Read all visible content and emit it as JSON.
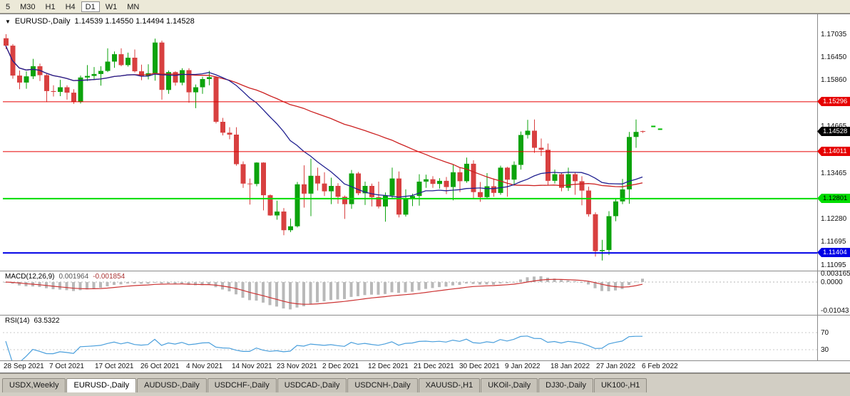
{
  "toolbar": {
    "periods": [
      "5",
      "M30",
      "H1",
      "H4",
      "D1",
      "W1",
      "MN"
    ],
    "active_period": "D1"
  },
  "chart": {
    "symbol_period": "EURUSD-,Daily",
    "ohlc": "1.14539 1.14550 1.14494 1.14528",
    "price_axis_labels": [
      "1.17035",
      "1.16450",
      "1.15860",
      "1.14665",
      "1.13465",
      "1.12280",
      "1.11695",
      "1.11095"
    ],
    "levels": [
      {
        "price": 1.15296,
        "label": "1.15296",
        "color": "#e60000",
        "text_color": "#ffffff",
        "width": 1
      },
      {
        "price": 1.14011,
        "label": "1.14011",
        "color": "#e60000",
        "text_color": "#ffffff",
        "width": 1
      },
      {
        "price": 1.12801,
        "label": "1.12801",
        "color": "#00dd00",
        "text_color": "#000000",
        "width": 2
      },
      {
        "price": 1.11404,
        "label": "1.11404",
        "color": "#0000e6",
        "text_color": "#ffffff",
        "width": 2
      }
    ],
    "current_price": {
      "label": "1.14528",
      "price": 1.14528,
      "bg": "#000000",
      "text_color": "#ffffff"
    },
    "colors": {
      "up": "#0ca30c",
      "down": "#d84040",
      "ma_fast": "#202090",
      "ma_slow": "#cc2020"
    },
    "date_axis_labels": [
      "28 Sep 2021",
      "7 Oct 2021",
      "17 Oct 2021",
      "26 Oct 2021",
      "4 Nov 2021",
      "14 Nov 2021",
      "23 Nov 2021",
      "2 Dec 2021",
      "12 Dec 2021",
      "21 Dec 2021",
      "30 Dec 2021",
      "9 Jan 2022",
      "18 Jan 2022",
      "27 Jan 2022",
      "6 Feb 2022"
    ]
  },
  "macd": {
    "name": "MACD(12,26,9)",
    "value_main": "0.001964",
    "value_signal": "-0.001854",
    "axis_labels": [
      "0.003165",
      "0.0000",
      "-0.01043"
    ],
    "colors": {
      "hist": "#b9b9b9",
      "signal": "#cc3333"
    }
  },
  "rsi": {
    "name": "RSI(14)",
    "value": "63.5322",
    "axis_labels": [
      "70",
      "30"
    ],
    "color": "#4a9fdc"
  },
  "tabs": {
    "items": [
      "USDX,Weekly",
      "EURUSD-,Daily",
      "AUDUSD-,Daily",
      "USDCHF-,Daily",
      "USDCAD-,Daily",
      "USDCNH-,Daily",
      "XAUUSD-,H1",
      "UKOil-,Daily",
      "DJ30-,Daily",
      "UK100-,H1"
    ],
    "active": "EURUSD-,Daily"
  },
  "chart_data": {
    "type": "candlestick",
    "symbol": "EURUSD-",
    "timeframe": "Daily",
    "start_date": "28 Sep 2021",
    "end_date": "6 Feb 2022",
    "y_range": [
      1.11095,
      1.17035
    ],
    "current_bar": {
      "open": 1.14539,
      "high": 1.1455,
      "low": 1.14494,
      "close": 1.14528
    },
    "overlays": {
      "horizontal_lines": [
        1.15296,
        1.14011,
        1.12801,
        1.11404
      ],
      "ma_fast_period": 20,
      "ma_slow_period": 45
    },
    "indicators": [
      {
        "type": "MACD",
        "params": [
          12,
          26,
          9
        ],
        "current": [
          0.001964,
          -0.001854
        ],
        "axis_range": [
          -0.01043,
          0.003165
        ]
      },
      {
        "type": "RSI",
        "params": [
          14
        ],
        "current": 63.5322,
        "levels": [
          30,
          70
        ]
      }
    ],
    "price_marks": [
      {
        "bar_offset": 95.6,
        "price": 1.1466
      },
      {
        "bar_offset": 96.6,
        "price": 1.1459
      }
    ],
    "candles": [
      [
        1.1693,
        1.17035,
        1.1665,
        1.1674
      ],
      [
        1.1674,
        1.1678,
        1.1589,
        1.1597
      ],
      [
        1.1597,
        1.161,
        1.1562,
        1.1579
      ],
      [
        1.1579,
        1.1608,
        1.1563,
        1.1595
      ],
      [
        1.1595,
        1.164,
        1.1588,
        1.1621
      ],
      [
        1.1621,
        1.1628,
        1.1583,
        1.1598
      ],
      [
        1.1598,
        1.1601,
        1.1529,
        1.1557
      ],
      [
        1.1557,
        1.1572,
        1.1543,
        1.1555
      ],
      [
        1.1555,
        1.1586,
        1.1544,
        1.1567
      ],
      [
        1.1567,
        1.1572,
        1.1535,
        1.1553
      ],
      [
        1.1553,
        1.1562,
        1.1524,
        1.1529
      ],
      [
        1.1529,
        1.1597,
        1.1525,
        1.1592
      ],
      [
        1.1592,
        1.1624,
        1.1583,
        1.1596
      ],
      [
        1.1596,
        1.1619,
        1.1588,
        1.1601
      ],
      [
        1.1601,
        1.1621,
        1.1571,
        1.1609
      ],
      [
        1.1609,
        1.1667,
        1.1606,
        1.1633
      ],
      [
        1.1633,
        1.1659,
        1.1617,
        1.1652
      ],
      [
        1.1652,
        1.1667,
        1.1621,
        1.1624
      ],
      [
        1.1624,
        1.1656,
        1.162,
        1.1643
      ],
      [
        1.1643,
        1.1664,
        1.1605,
        1.1608
      ],
      [
        1.1608,
        1.1625,
        1.1585,
        1.1596
      ],
      [
        1.1596,
        1.1626,
        1.1587,
        1.1603
      ],
      [
        1.1603,
        1.1692,
        1.1584,
        1.1682
      ],
      [
        1.1682,
        1.1687,
        1.1535,
        1.156
      ],
      [
        1.156,
        1.161,
        1.155,
        1.1606
      ],
      [
        1.1606,
        1.1608,
        1.1571,
        1.1579
      ],
      [
        1.1579,
        1.1616,
        1.1572,
        1.1611
      ],
      [
        1.1611,
        1.1616,
        1.1527,
        1.1554
      ],
      [
        1.1554,
        1.1574,
        1.1513,
        1.1567
      ],
      [
        1.1567,
        1.1594,
        1.155,
        1.1588
      ],
      [
        1.1588,
        1.1609,
        1.1572,
        1.1593
      ],
      [
        1.1593,
        1.1595,
        1.1474,
        1.1478
      ],
      [
        1.1478,
        1.1488,
        1.1443,
        1.145
      ],
      [
        1.145,
        1.1464,
        1.1433,
        1.1445
      ],
      [
        1.1445,
        1.1464,
        1.1365,
        1.1369
      ],
      [
        1.1369,
        1.1376,
        1.1308,
        1.1319
      ],
      [
        1.1319,
        1.1332,
        1.1265,
        1.1318
      ],
      [
        1.1318,
        1.1374,
        1.1312,
        1.1373
      ],
      [
        1.1373,
        1.1374,
        1.125,
        1.1289
      ],
      [
        1.1289,
        1.1291,
        1.1236,
        1.1237
      ],
      [
        1.1237,
        1.1275,
        1.1226,
        1.1247
      ],
      [
        1.1247,
        1.1256,
        1.1186,
        1.1199
      ],
      [
        1.1199,
        1.1229,
        1.1194,
        1.1209
      ],
      [
        1.1209,
        1.1323,
        1.1206,
        1.1317
      ],
      [
        1.1317,
        1.1366,
        1.1257,
        1.1293
      ],
      [
        1.1293,
        1.1383,
        1.1235,
        1.1339
      ],
      [
        1.1339,
        1.136,
        1.1301,
        1.1319
      ],
      [
        1.1319,
        1.1348,
        1.1287,
        1.1299
      ],
      [
        1.1299,
        1.1334,
        1.1266,
        1.1313
      ],
      [
        1.1313,
        1.132,
        1.1267,
        1.1285
      ],
      [
        1.1285,
        1.1288,
        1.1228,
        1.1266
      ],
      [
        1.1266,
        1.1354,
        1.1254,
        1.1345
      ],
      [
        1.1345,
        1.1349,
        1.1289,
        1.1294
      ],
      [
        1.1294,
        1.1324,
        1.1264,
        1.1313
      ],
      [
        1.1313,
        1.1319,
        1.126,
        1.1284
      ],
      [
        1.1284,
        1.1324,
        1.1255,
        1.126
      ],
      [
        1.126,
        1.1296,
        1.1221,
        1.1288
      ],
      [
        1.1288,
        1.136,
        1.1281,
        1.1332
      ],
      [
        1.1332,
        1.135,
        1.1232,
        1.1239
      ],
      [
        1.1239,
        1.1304,
        1.1234,
        1.128
      ],
      [
        1.128,
        1.1293,
        1.1261,
        1.1287
      ],
      [
        1.1287,
        1.1343,
        1.1262,
        1.1324
      ],
      [
        1.1324,
        1.1342,
        1.1308,
        1.133
      ],
      [
        1.133,
        1.1338,
        1.1308,
        1.1318
      ],
      [
        1.1318,
        1.1333,
        1.1306,
        1.1326
      ],
      [
        1.1326,
        1.1336,
        1.1292,
        1.131
      ],
      [
        1.131,
        1.1369,
        1.1276,
        1.1348
      ],
      [
        1.1348,
        1.136,
        1.1297,
        1.1325
      ],
      [
        1.1325,
        1.1386,
        1.1321,
        1.137
      ],
      [
        1.137,
        1.1379,
        1.1279,
        1.1297
      ],
      [
        1.1297,
        1.1323,
        1.1272,
        1.1284
      ],
      [
        1.1284,
        1.1346,
        1.128,
        1.1312
      ],
      [
        1.1312,
        1.1332,
        1.1285,
        1.1295
      ],
      [
        1.1295,
        1.1365,
        1.129,
        1.136
      ],
      [
        1.136,
        1.1362,
        1.1285,
        1.1329
      ],
      [
        1.1329,
        1.1376,
        1.1314,
        1.1367
      ],
      [
        1.1367,
        1.1453,
        1.1355,
        1.1444
      ],
      [
        1.1444,
        1.1483,
        1.1435,
        1.1455
      ],
      [
        1.1455,
        1.1484,
        1.1398,
        1.1411
      ],
      [
        1.1411,
        1.1435,
        1.139,
        1.1406
      ],
      [
        1.1406,
        1.1422,
        1.1315,
        1.1326
      ],
      [
        1.1326,
        1.1355,
        1.1319,
        1.1343
      ],
      [
        1.1343,
        1.1347,
        1.1299,
        1.1308
      ],
      [
        1.1308,
        1.136,
        1.13,
        1.1343
      ],
      [
        1.1343,
        1.1348,
        1.129,
        1.1325
      ],
      [
        1.1325,
        1.1338,
        1.1263,
        1.1301
      ],
      [
        1.1301,
        1.1311,
        1.1234,
        1.124
      ],
      [
        1.124,
        1.1245,
        1.1131,
        1.1145
      ],
      [
        1.1145,
        1.1174,
        1.1121,
        1.1148
      ],
      [
        1.1148,
        1.1248,
        1.1135,
        1.1235
      ],
      [
        1.1235,
        1.1279,
        1.1222,
        1.1273
      ],
      [
        1.1273,
        1.1331,
        1.1266,
        1.1304
      ],
      [
        1.1304,
        1.1452,
        1.1267,
        1.1439
      ],
      [
        1.1439,
        1.1484,
        1.1411,
        1.1452
      ],
      [
        1.14539,
        1.1455,
        1.14494,
        1.14528
      ]
    ]
  }
}
